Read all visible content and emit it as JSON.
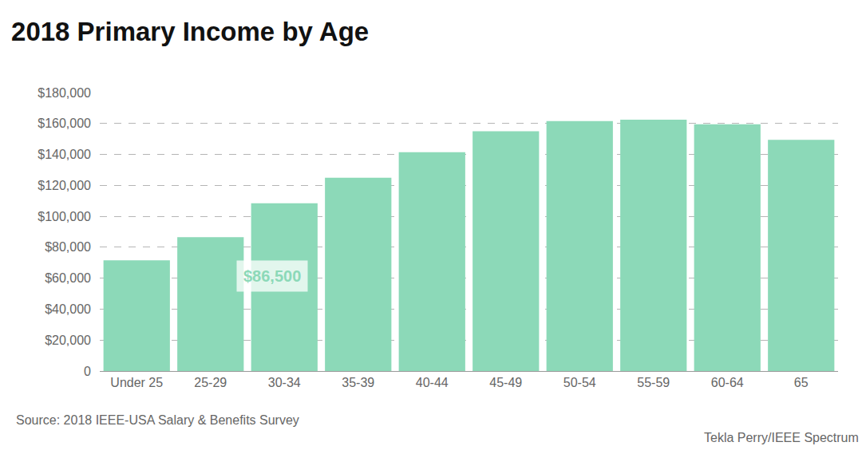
{
  "chart_data": {
    "type": "bar",
    "title": "2018 Primary Income by Age",
    "categories": [
      "Under 25",
      "25-29",
      "30-34",
      "35-39",
      "40-44",
      "45-49",
      "50-54",
      "55-59",
      "60-64",
      "65"
    ],
    "values": [
      71500,
      86500,
      108500,
      125000,
      141500,
      155000,
      161500,
      162500,
      159500,
      149500
    ],
    "color": "#8cd9b8",
    "ylim": [
      0,
      180000
    ],
    "yticks": [
      0,
      {
        "value": 20000,
        "label": "$20,000"
      },
      {
        "value": 40000,
        "label": "$40,000"
      },
      {
        "value": 60000,
        "label": "$60,000"
      },
      {
        "value": 80000,
        "label": "$80,000"
      },
      {
        "value": 100000,
        "label": "$100,000"
      },
      {
        "value": 120000,
        "label": "$120,000"
      },
      {
        "value": 140000,
        "label": "$140,000"
      },
      {
        "value": 160000,
        "label": "$160,000"
      },
      {
        "value": 180000,
        "label": "$180,000"
      }
    ],
    "grid": true,
    "annotations": [
      {
        "text": "$86,500",
        "category": "25-29"
      }
    ],
    "source": "Source: 2018 IEEE-USA Salary & Benefits Survey",
    "credit": "Tekla Perry/IEEE Spectrum"
  }
}
